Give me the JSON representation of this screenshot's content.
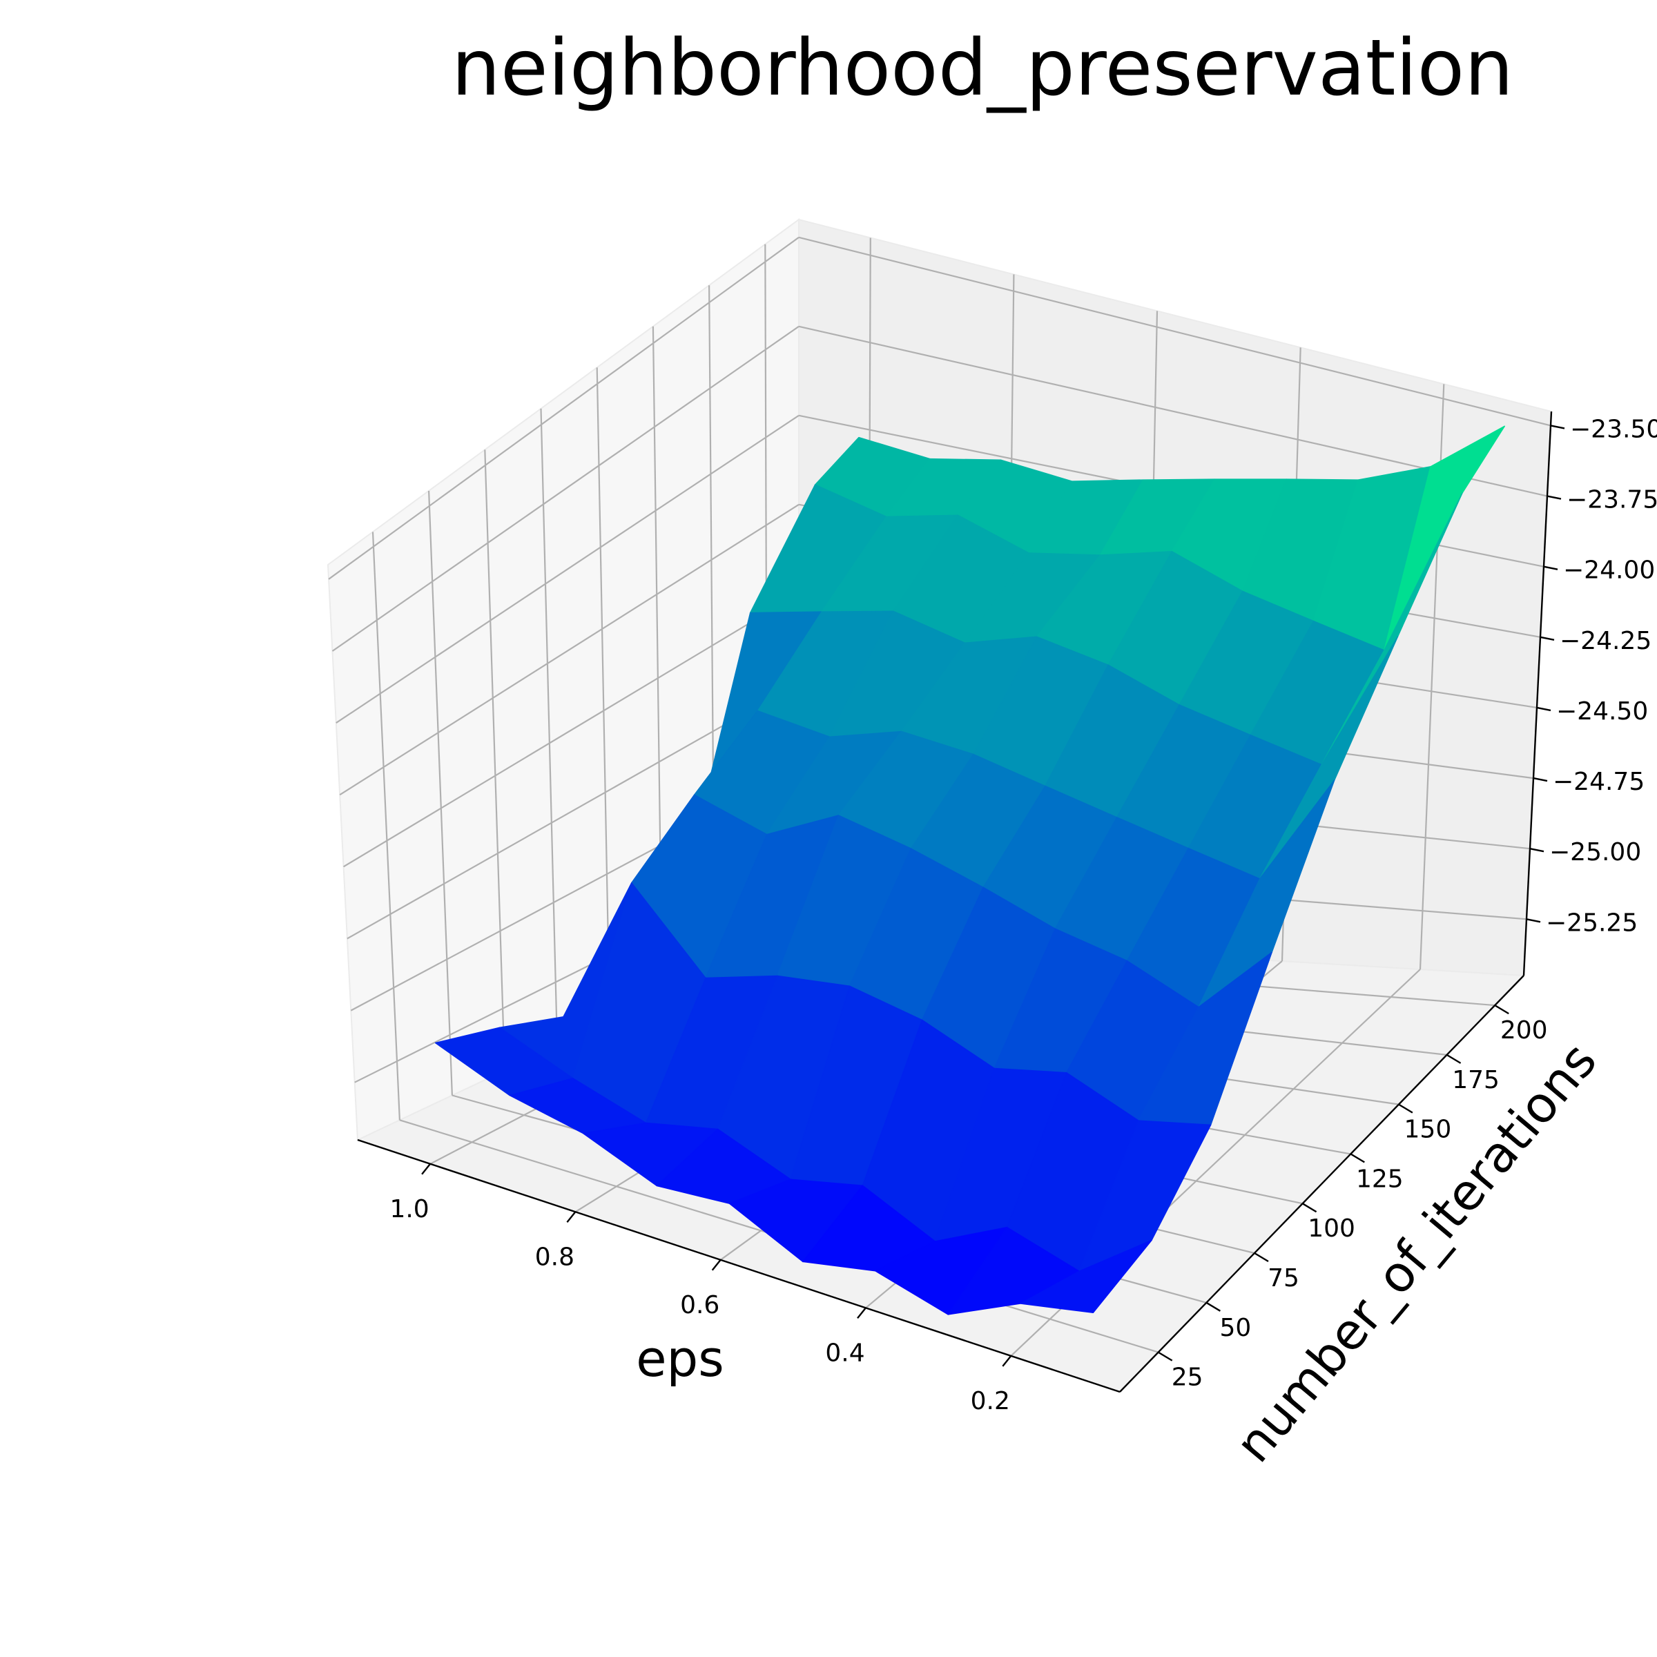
{
  "chart_data": {
    "type": "surface3d",
    "title": "neighborhood_preservation",
    "xlabel": "eps",
    "ylabel": "number_of_iterations",
    "zlabel": "",
    "xlim": [
      1.1,
      0.05
    ],
    "ylim": [
      5,
      215
    ],
    "zlim": [
      -25.45,
      -23.45
    ],
    "x_ticks": [
      1.0,
      0.8,
      0.6,
      0.4,
      0.2
    ],
    "x_tick_labels": [
      "1.0",
      "0.8",
      "0.6",
      "0.4",
      "0.2"
    ],
    "y_ticks": [
      25,
      50,
      75,
      100,
      125,
      150,
      175,
      200
    ],
    "y_tick_labels": [
      "25",
      "50",
      "75",
      "100",
      "125",
      "150",
      "175",
      "200"
    ],
    "z_ticks": [
      -25.25,
      -25.0,
      -24.75,
      -24.5,
      -24.25,
      -24.0,
      -23.75,
      -23.5
    ],
    "z_tick_labels": [
      "−25.25",
      "−25.00",
      "−24.75",
      "−24.50",
      "−24.25",
      "−24.00",
      "−23.75",
      "−23.50"
    ],
    "colormap": "winter",
    "colormap_colors": [
      "#0000ff",
      "#00ff80"
    ],
    "grid": true,
    "surface": {
      "eps": [
        1.0,
        0.9,
        0.8,
        0.7,
        0.6,
        0.5,
        0.4,
        0.3,
        0.2,
        0.1
      ],
      "number_of_iterations": [
        10,
        40,
        70,
        100,
        130,
        160,
        190,
        210
      ],
      "z": [
        [
          -25.05,
          -25.12,
          -25.2,
          -25.1,
          -24.95,
          -24.3,
          -24.05,
          -24.0
        ],
        [
          -25.15,
          -25.22,
          -24.7,
          -24.55,
          -24.42,
          -24.25,
          -24.1,
          -24.02
        ],
        [
          -25.2,
          -25.3,
          -24.95,
          -24.62,
          -24.45,
          -24.2,
          -24.05,
          -23.98
        ],
        [
          -25.3,
          -25.25,
          -24.88,
          -24.5,
          -24.38,
          -24.25,
          -24.12,
          -24.0
        ],
        [
          -25.28,
          -25.35,
          -24.85,
          -24.55,
          -24.4,
          -24.18,
          -24.08,
          -23.95
        ],
        [
          -25.4,
          -25.3,
          -24.9,
          -24.62,
          -24.45,
          -24.22,
          -24.02,
          -23.9
        ],
        [
          -25.35,
          -25.42,
          -25.0,
          -24.7,
          -24.5,
          -24.3,
          -24.1,
          -23.85
        ],
        [
          -25.42,
          -25.3,
          -24.95,
          -24.75,
          -24.55,
          -24.35,
          -24.15,
          -23.8
        ],
        [
          -25.3,
          -25.38,
          -25.05,
          -24.85,
          -24.6,
          -24.4,
          -24.2,
          -23.7
        ],
        [
          -25.25,
          -25.2,
          -25.0,
          -24.6,
          -24.2,
          -23.9,
          -23.6,
          -23.5
        ]
      ]
    }
  }
}
